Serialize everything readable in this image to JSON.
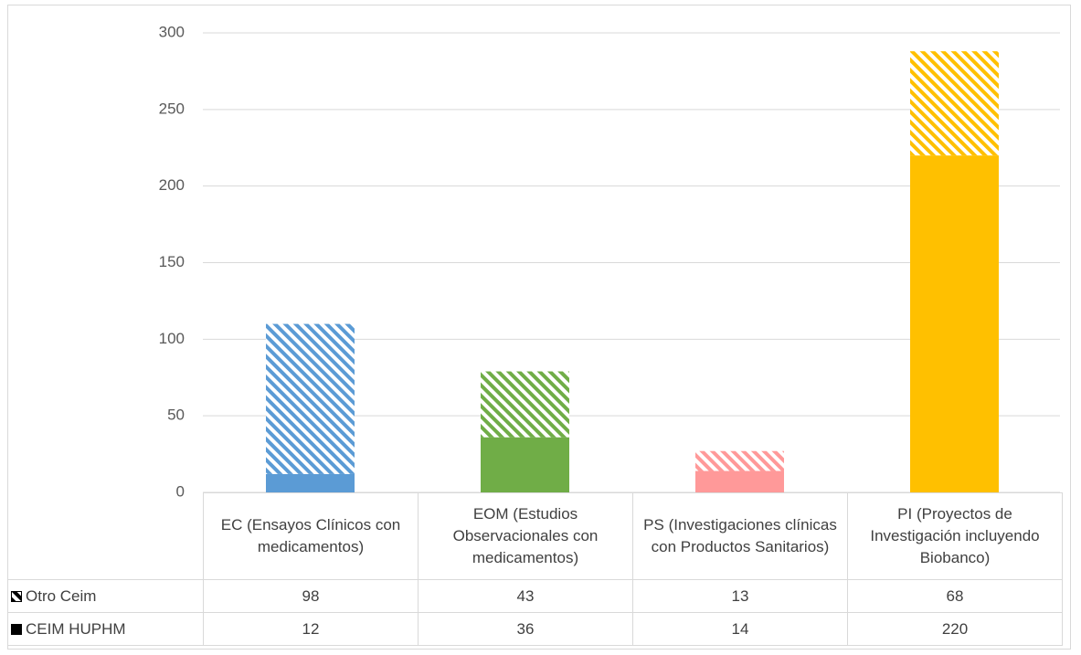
{
  "chart_data": {
    "type": "stacked_bar",
    "categories": [
      "EC (Ensayos Clínicos con medicamentos)",
      "EOM (Estudios Observacionales con medicamentos)",
      "PS (Investigaciones clínicas con Productos Sanitarios)",
      "PI (Proyectos de Investigación incluyendo Biobanco)"
    ],
    "colors": [
      "#5b9bd5",
      "#70ad47",
      "#ff9999",
      "#ffc000"
    ],
    "series": [
      {
        "name": "Otro Ceim",
        "fill": "hatched",
        "values": [
          98,
          43,
          13,
          68
        ]
      },
      {
        "name": "CEIM HUPHM",
        "fill": "solid",
        "values": [
          12,
          36,
          14,
          220
        ]
      }
    ],
    "stack_order": "last_series_at_bottom",
    "ylim": [
      0,
      300
    ],
    "yticks": [
      0,
      50,
      100,
      150,
      200,
      250,
      300
    ],
    "grid": true,
    "data_table": true
  }
}
